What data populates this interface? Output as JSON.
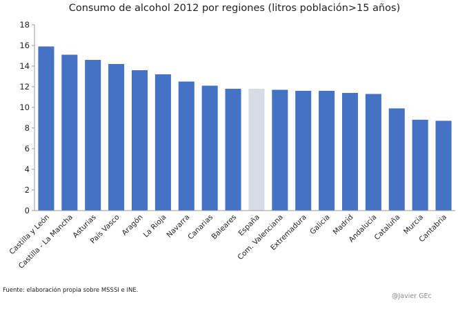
{
  "chart_data": {
    "type": "bar",
    "title": "Consumo de alcohol  2012 por regiones (litros población>15 años)",
    "xlabel": "",
    "ylabel": "",
    "ylim": [
      0,
      18
    ],
    "yticks": [
      0,
      2,
      4,
      6,
      8,
      10,
      12,
      14,
      16,
      18
    ],
    "categories": [
      "Castilla y León",
      "Castilla - La Mancha",
      "Asturias",
      "País Vasco",
      "Aragón",
      "La Rioja",
      "Navarra",
      "Canarias",
      "Baleares",
      "España",
      "Com. Valenciana",
      "Extremadura",
      "Galicia",
      "Madrid",
      "Andalucía",
      "Cataluña",
      "Murcia",
      "Cantabria"
    ],
    "values": [
      15.9,
      15.1,
      14.6,
      14.2,
      13.6,
      13.2,
      12.5,
      12.1,
      11.8,
      11.8,
      11.7,
      11.6,
      11.6,
      11.4,
      11.3,
      9.9,
      8.8,
      8.7
    ],
    "highlight_category": "España",
    "grid": false,
    "legend": "none"
  },
  "colors": {
    "bar": "#4472c4",
    "highlight": "#d6dce5",
    "axis": "#9a9a9a"
  },
  "source_text": "Fuente: elaboración  propia sobre MSSSI e INE.",
  "credit_text": "@Javier GEc"
}
